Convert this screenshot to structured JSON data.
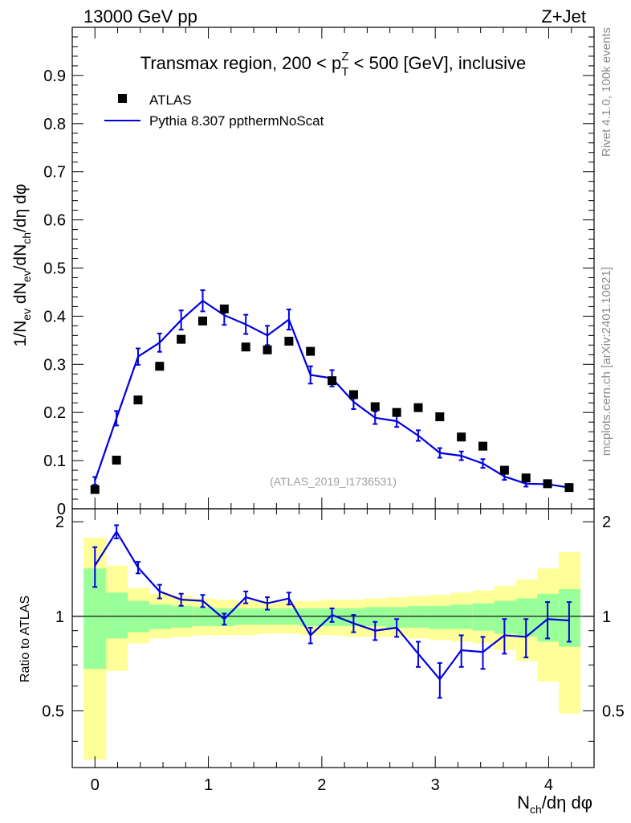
{
  "header": {
    "left": "13000 GeV pp",
    "right": "Z+Jet"
  },
  "side_labels": {
    "top": "Rivet 4.1.0,  100k events",
    "bottom": "mcplots.cern.ch [arXiv:2401.10621]"
  },
  "colors": {
    "mc": "#0000e0",
    "data": "#000000",
    "band_inner": "#99ff99",
    "band_outer": "#ffff99",
    "watermark": "#a0a0a0"
  },
  "chart_data": [
    {
      "type": "scatter",
      "panel": "main",
      "title_parts": {
        "pre": "Transmax region, 200 < p",
        "sup": "Z",
        "sub": "T",
        "post": " < 500 [GeV], inclusive"
      },
      "ylabel": "1/N_ev dN_ev/dN_ch/dη dφ",
      "ylim": [
        0,
        1.0
      ],
      "yticks": [
        0,
        0.1,
        0.2,
        0.3,
        0.4,
        0.5,
        0.6,
        0.7,
        0.8,
        0.9
      ],
      "ytick_labels": [
        "0",
        "0.1",
        "0.2",
        "0.3",
        "0.4",
        "0.5",
        "0.6",
        "0.7",
        "0.8",
        "0.9"
      ],
      "xlim": [
        -0.2,
        4.4
      ],
      "watermark": "(ATLAS_2019_I1736531)",
      "legend": {
        "placement": "top-left",
        "data_label": "ATLAS",
        "mc_label": "Pythia 8.307 ppthermNoScat"
      },
      "x": [
        0,
        0.19,
        0.38,
        0.57,
        0.76,
        0.95,
        1.14,
        1.33,
        1.52,
        1.71,
        1.9,
        2.09,
        2.28,
        2.47,
        2.66,
        2.85,
        3.04,
        3.23,
        3.42,
        3.61,
        3.8,
        3.99,
        4.18
      ],
      "series": [
        {
          "name": "ATLAS",
          "values": [
            0.04,
            0.101,
            0.226,
            0.296,
            0.352,
            0.39,
            0.415,
            0.336,
            0.33,
            0.348,
            0.327,
            0.266,
            0.237,
            0.212,
            0.2,
            0.21,
            0.191,
            0.149,
            0.13,
            0.08,
            0.064,
            0.052,
            0.044
          ]
        },
        {
          "name": "Pythia 8.307 ppthermNoScat",
          "values": [
            0.058,
            0.188,
            0.316,
            0.345,
            0.392,
            0.432,
            0.402,
            0.383,
            0.36,
            0.393,
            0.278,
            0.271,
            0.222,
            0.189,
            0.182,
            0.152,
            0.116,
            0.11,
            0.094,
            0.067,
            0.052,
            0.051,
            0.044
          ],
          "errors": [
            0.008,
            0.015,
            0.017,
            0.019,
            0.02,
            0.022,
            0.02,
            0.02,
            0.02,
            0.021,
            0.018,
            0.017,
            0.015,
            0.013,
            0.012,
            0.011,
            0.01,
            0.009,
            0.009,
            0.007,
            0.006,
            0.006,
            0.005
          ]
        }
      ]
    },
    {
      "type": "line",
      "panel": "ratio",
      "ylabel": "Ratio to ATLAS",
      "xlabel": "N_ch/dη dφ",
      "ylim": [
        0.33,
        2.2
      ],
      "yticks": [
        0.5,
        1,
        2
      ],
      "ytick_labels": [
        "0.5",
        "1",
        "2"
      ],
      "xticks": [
        0,
        1,
        2,
        3,
        4
      ],
      "xtick_labels": [
        "0",
        "1",
        "2",
        "3",
        "4"
      ],
      "x": [
        0,
        0.19,
        0.38,
        0.57,
        0.76,
        0.95,
        1.14,
        1.33,
        1.52,
        1.71,
        1.9,
        2.09,
        2.28,
        2.47,
        2.66,
        2.85,
        3.04,
        3.23,
        3.42,
        3.61,
        3.8,
        3.99,
        4.18
      ],
      "series": [
        {
          "name": "Pythia 8.307 ppthermNoScat / ATLAS",
          "values": [
            1.45,
            1.86,
            1.43,
            1.2,
            1.13,
            1.12,
            0.98,
            1.15,
            1.1,
            1.14,
            0.87,
            1.01,
            0.95,
            0.9,
            0.92,
            0.76,
            0.63,
            0.78,
            0.77,
            0.87,
            0.86,
            0.98,
            0.97
          ],
          "errors": [
            0.21,
            0.09,
            0.06,
            0.06,
            0.05,
            0.05,
            0.04,
            0.05,
            0.05,
            0.05,
            0.05,
            0.05,
            0.06,
            0.06,
            0.06,
            0.07,
            0.08,
            0.09,
            0.09,
            0.11,
            0.12,
            0.13,
            0.14
          ]
        }
      ],
      "band_edges": [
        -0.1,
        0.1,
        0.29,
        0.48,
        0.67,
        0.86,
        1.05,
        1.24,
        1.43,
        1.62,
        1.81,
        2.0,
        2.19,
        2.38,
        2.57,
        2.76,
        2.95,
        3.14,
        3.33,
        3.52,
        3.71,
        3.9,
        4.09,
        4.28
      ],
      "band_inner_lo": [
        0.68,
        0.85,
        0.89,
        0.91,
        0.92,
        0.93,
        0.93,
        0.94,
        0.94,
        0.94,
        0.93,
        0.93,
        0.93,
        0.93,
        0.92,
        0.92,
        0.91,
        0.91,
        0.9,
        0.88,
        0.86,
        0.83,
        0.8
      ],
      "band_inner_hi": [
        1.42,
        1.19,
        1.12,
        1.09,
        1.08,
        1.07,
        1.06,
        1.06,
        1.06,
        1.06,
        1.06,
        1.06,
        1.06,
        1.07,
        1.07,
        1.08,
        1.08,
        1.09,
        1.1,
        1.12,
        1.14,
        1.18,
        1.22
      ],
      "band_outer_lo": [
        0.35,
        0.67,
        0.82,
        0.85,
        0.86,
        0.87,
        0.87,
        0.87,
        0.88,
        0.88,
        0.87,
        0.87,
        0.86,
        0.86,
        0.86,
        0.85,
        0.84,
        0.83,
        0.82,
        0.78,
        0.72,
        0.62,
        0.49
      ],
      "band_outer_hi": [
        1.78,
        1.45,
        1.23,
        1.18,
        1.16,
        1.14,
        1.13,
        1.12,
        1.12,
        1.12,
        1.12,
        1.13,
        1.13,
        1.14,
        1.15,
        1.16,
        1.17,
        1.19,
        1.21,
        1.25,
        1.31,
        1.42,
        1.6
      ]
    }
  ]
}
